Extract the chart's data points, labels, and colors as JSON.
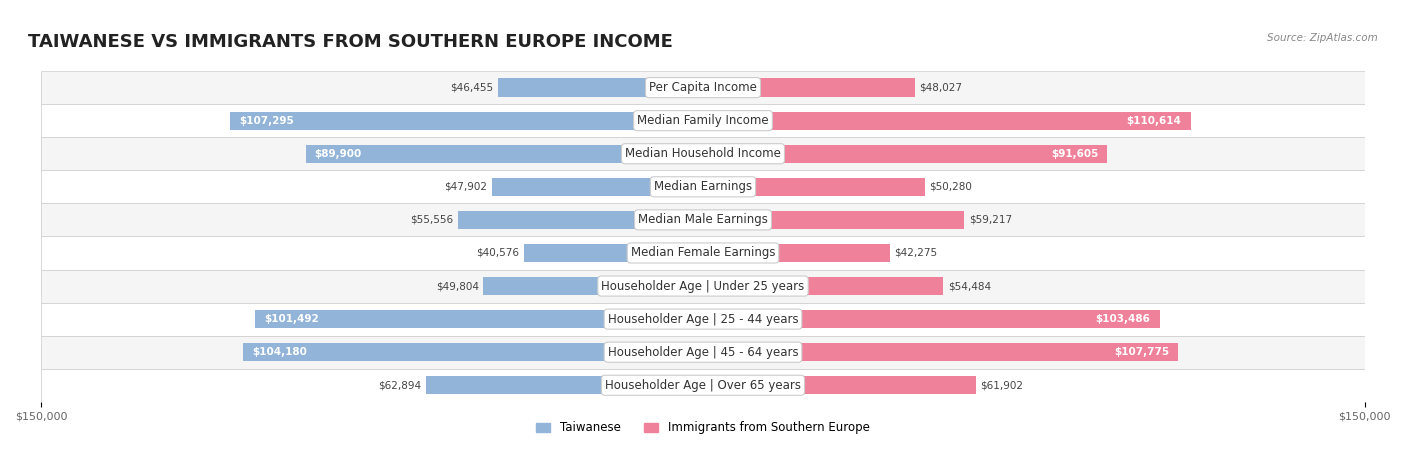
{
  "title": "TAIWANESE VS IMMIGRANTS FROM SOUTHERN EUROPE INCOME",
  "source": "Source: ZipAtlas.com",
  "categories": [
    "Per Capita Income",
    "Median Family Income",
    "Median Household Income",
    "Median Earnings",
    "Median Male Earnings",
    "Median Female Earnings",
    "Householder Age | Under 25 years",
    "Householder Age | 25 - 44 years",
    "Householder Age | 45 - 64 years",
    "Householder Age | Over 65 years"
  ],
  "taiwanese_values": [
    46455,
    107295,
    89900,
    47902,
    55556,
    40576,
    49804,
    101492,
    104180,
    62894
  ],
  "immigrant_values": [
    48027,
    110614,
    91605,
    50280,
    59217,
    42275,
    54484,
    103486,
    107775,
    61902
  ],
  "taiwanese_labels": [
    "$46,455",
    "$107,295",
    "$89,900",
    "$47,902",
    "$55,556",
    "$40,576",
    "$49,804",
    "$101,492",
    "$104,180",
    "$62,894"
  ],
  "immigrant_labels": [
    "$48,027",
    "$110,614",
    "$91,605",
    "$50,280",
    "$59,217",
    "$42,275",
    "$54,484",
    "$103,486",
    "$107,775",
    "$61,902"
  ],
  "max_value": 150000,
  "color_taiwanese": "#92b4d8",
  "color_immigrant": "#f0819a",
  "color_taiwanese_dark": "#6a9ec8",
  "color_immigrant_dark": "#e8607a",
  "label_taiwanese": "Taiwanese",
  "label_immigrant": "Immigrants from Southern Europe",
  "row_bg_light": "#f5f5f5",
  "row_bg_white": "#ffffff",
  "bar_height": 0.55,
  "title_fontsize": 13,
  "label_fontsize": 8.5,
  "value_fontsize": 7.5,
  "axis_label_fontsize": 8
}
